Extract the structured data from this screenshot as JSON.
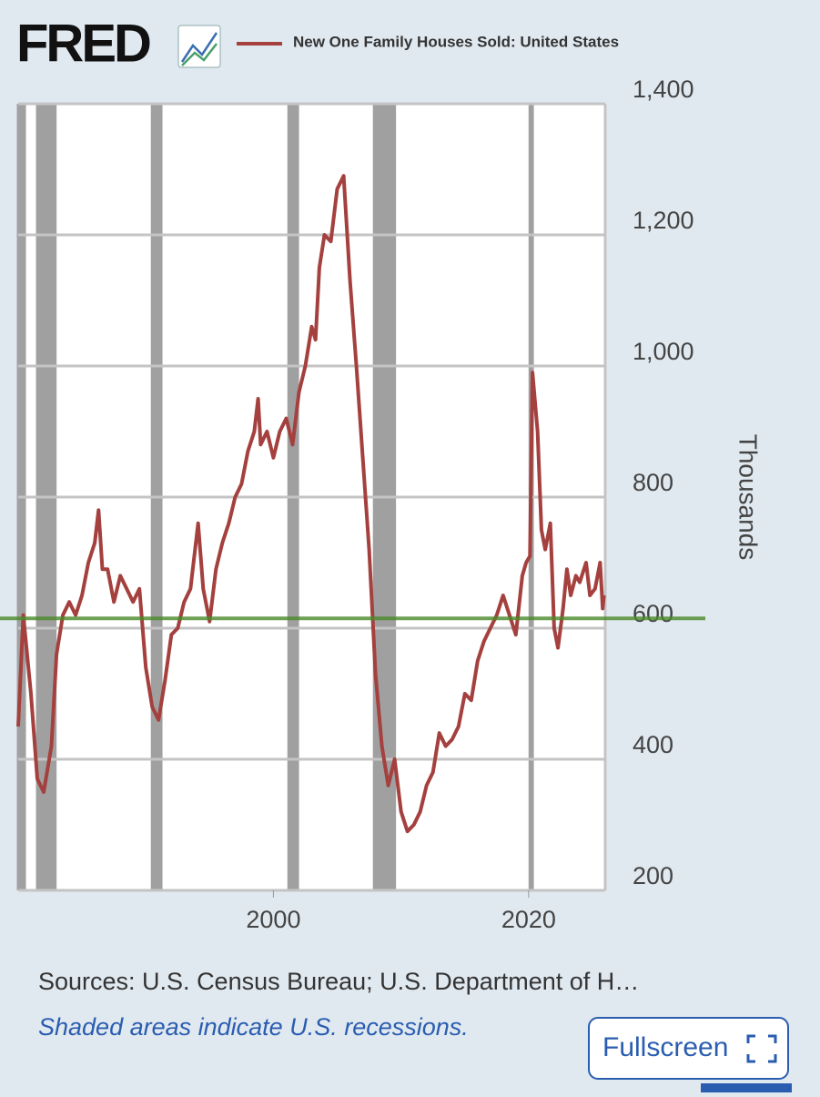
{
  "chart_data": {
    "type": "line",
    "logo": "FRED",
    "title": "New One Family Houses Sold: United States",
    "y_label": "Thousands",
    "sources": "Sources: U.S. Census Bureau; U.S. Department of H…",
    "note": "Shaded areas indicate U.S. recessions.",
    "button": "Fullscreen",
    "x": [
      1980.0,
      1980.4,
      1981.0,
      1981.5,
      1982.0,
      1982.6,
      1983.0,
      1983.5,
      1984.0,
      1984.5,
      1985.0,
      1985.5,
      1986.0,
      1986.3,
      1986.6,
      1987.0,
      1987.5,
      1988.0,
      1988.5,
      1989.0,
      1989.5,
      1990.0,
      1990.5,
      1991.0,
      1991.5,
      1992.0,
      1992.5,
      1993.0,
      1993.5,
      1994.1,
      1994.5,
      1995.0,
      1995.5,
      1996.0,
      1996.5,
      1997.0,
      1997.5,
      1998.0,
      1998.5,
      1998.8,
      1999.0,
      1999.5,
      2000.0,
      2000.5,
      2001.0,
      2001.5,
      2002.0,
      2002.5,
      2003.0,
      2003.3,
      2003.6,
      2004.0,
      2004.5,
      2005.0,
      2005.5,
      2006.0,
      2006.5,
      2007.0,
      2007.5,
      2008.0,
      2008.5,
      2009.0,
      2009.5,
      2010.0,
      2010.5,
      2011.0,
      2011.5,
      2012.0,
      2012.5,
      2013.0,
      2013.5,
      2014.0,
      2014.5,
      2015.0,
      2015.5,
      2016.0,
      2016.5,
      2017.0,
      2017.5,
      2018.0,
      2018.5,
      2019.0,
      2019.5,
      2019.8,
      2020.1,
      2020.3,
      2020.7,
      2021.0,
      2021.3,
      2021.7,
      2022.0,
      2022.3,
      2022.7,
      2023.0,
      2023.3,
      2023.7,
      2024.0,
      2024.5,
      2024.8,
      2025.2,
      2025.6,
      2025.8,
      2025.9
    ],
    "series": [
      {
        "name": "New One Family Houses Sold: United States",
        "color": "#a4403e",
        "values": [
          450,
          620,
          500,
          370,
          350,
          420,
          560,
          620,
          640,
          620,
          650,
          700,
          730,
          780,
          690,
          690,
          640,
          680,
          660,
          640,
          660,
          540,
          480,
          460,
          520,
          590,
          600,
          640,
          660,
          760,
          660,
          610,
          690,
          730,
          760,
          800,
          820,
          870,
          900,
          950,
          880,
          900,
          860,
          900,
          920,
          880,
          960,
          1000,
          1060,
          1040,
          1150,
          1200,
          1190,
          1270,
          1290,
          1130,
          1000,
          860,
          720,
          530,
          420,
          360,
          400,
          320,
          290,
          300,
          320,
          360,
          380,
          440,
          420,
          430,
          450,
          500,
          490,
          550,
          580,
          600,
          620,
          650,
          620,
          590,
          680,
          700,
          710,
          990,
          900,
          750,
          720,
          760,
          600,
          570,
          630,
          690,
          650,
          680,
          670,
          700,
          650,
          660,
          700,
          630,
          650
        ]
      }
    ],
    "recessions": [
      [
        1980.0,
        1980.5
      ],
      [
        1981.5,
        1982.9
      ],
      [
        1990.5,
        1991.2
      ],
      [
        2001.2,
        2001.9
      ],
      [
        2007.9,
        2009.5
      ],
      [
        2020.1,
        2020.3
      ]
    ],
    "reference_line": {
      "value": 615,
      "color": "#4a8a2a"
    },
    "xlim": [
      1980,
      2026
    ],
    "xticks": [
      2000,
      2020
    ],
    "ylim": [
      200,
      1400
    ],
    "yticks": [
      200,
      400,
      600,
      800,
      {
        "value": 1000,
        "label": "1,000"
      },
      {
        "value": 1200,
        "label": "1,200"
      },
      {
        "value": 1400,
        "label": "1,400"
      }
    ],
    "grid": true
  }
}
